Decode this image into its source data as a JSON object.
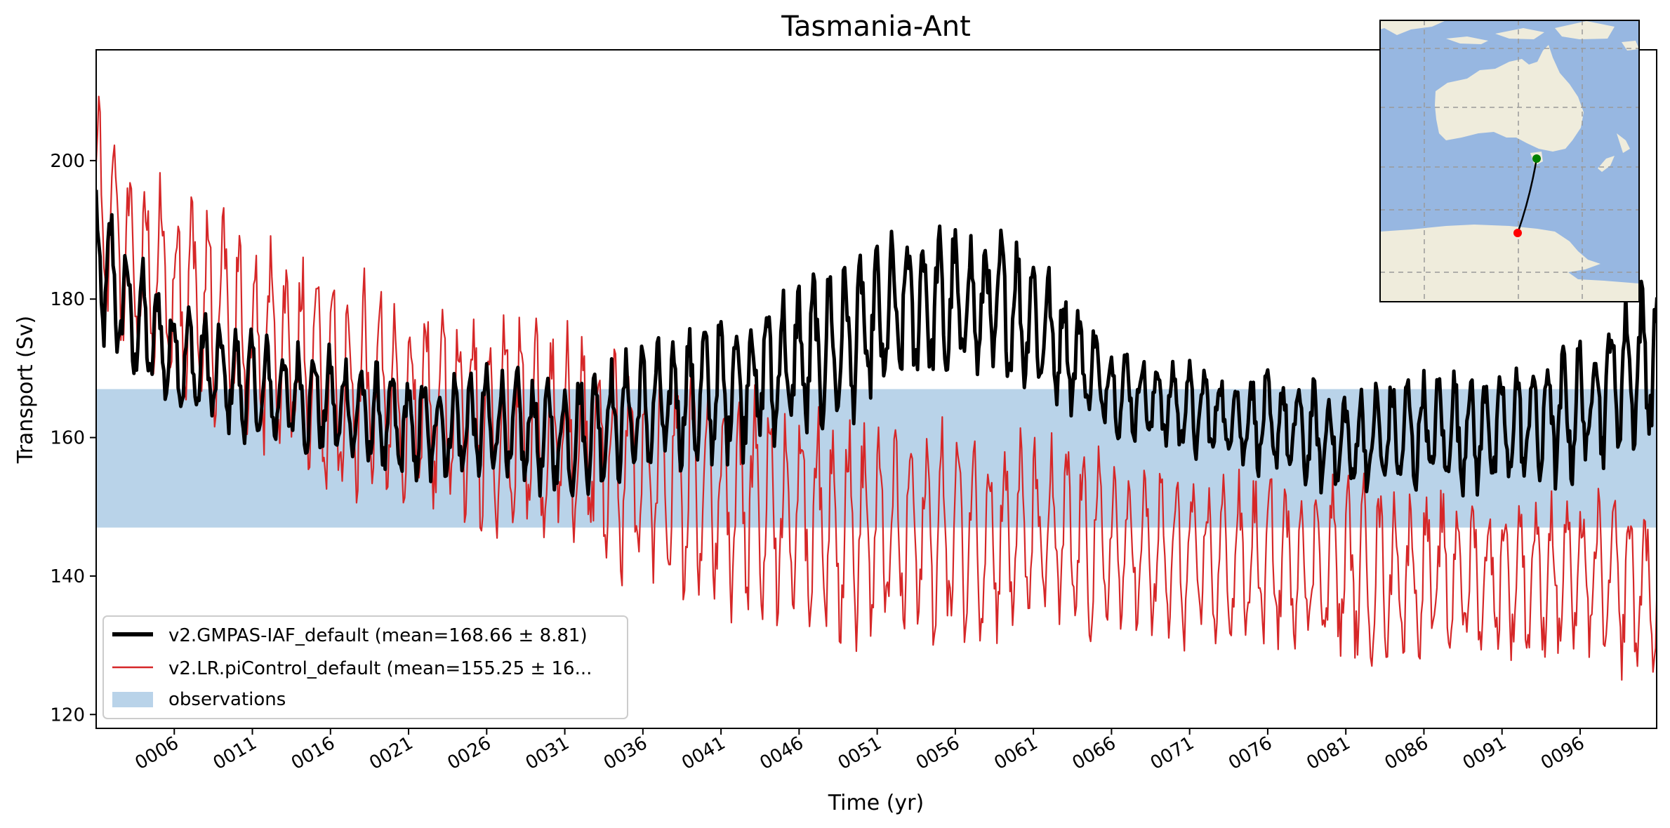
{
  "chart_data": {
    "type": "line",
    "title": "Tasmania-Ant",
    "xlabel": "Time (yr)",
    "ylabel": "Transport (Sv)",
    "xlim": [
      1.0,
      100.9
    ],
    "ylim": [
      118,
      216
    ],
    "x_ticks": [
      6,
      11,
      16,
      21,
      26,
      31,
      36,
      41,
      46,
      51,
      56,
      61,
      66,
      71,
      76,
      81,
      86,
      91,
      96
    ],
    "x_tick_labels": [
      "0006",
      "0011",
      "0016",
      "0021",
      "0026",
      "0031",
      "0036",
      "0041",
      "0046",
      "0051",
      "0056",
      "0061",
      "0066",
      "0071",
      "0076",
      "0081",
      "0086",
      "0091",
      "0096"
    ],
    "y_ticks": [
      120,
      140,
      160,
      180,
      200
    ],
    "y_tick_labels": [
      "120",
      "140",
      "160",
      "180",
      "200"
    ],
    "grid": false,
    "legend_position": "bottom-left",
    "observation_band": {
      "label": "observations",
      "ymin": 147,
      "ymax": 167,
      "color": "#b9d3e9"
    },
    "series": [
      {
        "name": "v2.GMPAS-IAF_default (mean=168.66 ± 8.81)",
        "color": "#000000",
        "style": "thick",
        "samples_per_year": 12,
        "annual_mean": [
          [
            1,
            186
          ],
          [
            3,
            178
          ],
          [
            6,
            172
          ],
          [
            11,
            167
          ],
          [
            16,
            165
          ],
          [
            21,
            161
          ],
          [
            26,
            162
          ],
          [
            31,
            160
          ],
          [
            36,
            164
          ],
          [
            41,
            167
          ],
          [
            46,
            171
          ],
          [
            51,
            176
          ],
          [
            53,
            179
          ],
          [
            56,
            179
          ],
          [
            59,
            179
          ],
          [
            61,
            177
          ],
          [
            64,
            171
          ],
          [
            66,
            167
          ],
          [
            71,
            164
          ],
          [
            76,
            162
          ],
          [
            81,
            159
          ],
          [
            86,
            161
          ],
          [
            91,
            161
          ],
          [
            96,
            164
          ],
          [
            98,
            168
          ],
          [
            100.9,
            172
          ]
        ],
        "seasonal_amplitude": [
          [
            1,
            9
          ],
          [
            6,
            6
          ],
          [
            21,
            6
          ],
          [
            36,
            7
          ],
          [
            46,
            9
          ],
          [
            51,
            9
          ],
          [
            61,
            8
          ],
          [
            66,
            5
          ],
          [
            81,
            6
          ],
          [
            91,
            7
          ],
          [
            100.9,
            9
          ]
        ],
        "max": 197,
        "min": 148
      },
      {
        "name": "v2.LR.piControl_default (mean=155.25 ± 16...",
        "color": "#d62728",
        "style": "thin",
        "samples_per_year": 12,
        "annual_mean": [
          [
            1,
            196
          ],
          [
            3,
            186
          ],
          [
            6,
            181
          ],
          [
            11,
            174
          ],
          [
            16,
            168
          ],
          [
            21,
            165
          ],
          [
            26,
            163
          ],
          [
            31,
            160
          ],
          [
            36,
            155
          ],
          [
            41,
            152
          ],
          [
            46,
            149
          ],
          [
            51,
            146
          ],
          [
            56,
            146
          ],
          [
            61,
            146
          ],
          [
            66,
            144
          ],
          [
            71,
            142
          ],
          [
            76,
            142
          ],
          [
            81,
            141
          ],
          [
            86,
            140
          ],
          [
            91,
            140
          ],
          [
            96,
            140
          ],
          [
            100.9,
            138
          ]
        ],
        "seasonal_amplitude": [
          [
            1,
            11
          ],
          [
            6,
            12
          ],
          [
            11,
            13
          ],
          [
            21,
            12
          ],
          [
            31,
            12
          ],
          [
            46,
            13
          ],
          [
            61,
            11
          ],
          [
            66,
            10
          ],
          [
            71,
            9
          ],
          [
            81,
            10
          ],
          [
            91,
            9
          ],
          [
            100.9,
            10
          ]
        ],
        "max": 211,
        "min": 122
      }
    ],
    "inset_map": {
      "region": "Australia and Southern Ocean",
      "land_color": "#efecdc",
      "ocean_color": "#97b7e1",
      "section_start": "Tasmania",
      "section_end": "Antarctica"
    }
  }
}
